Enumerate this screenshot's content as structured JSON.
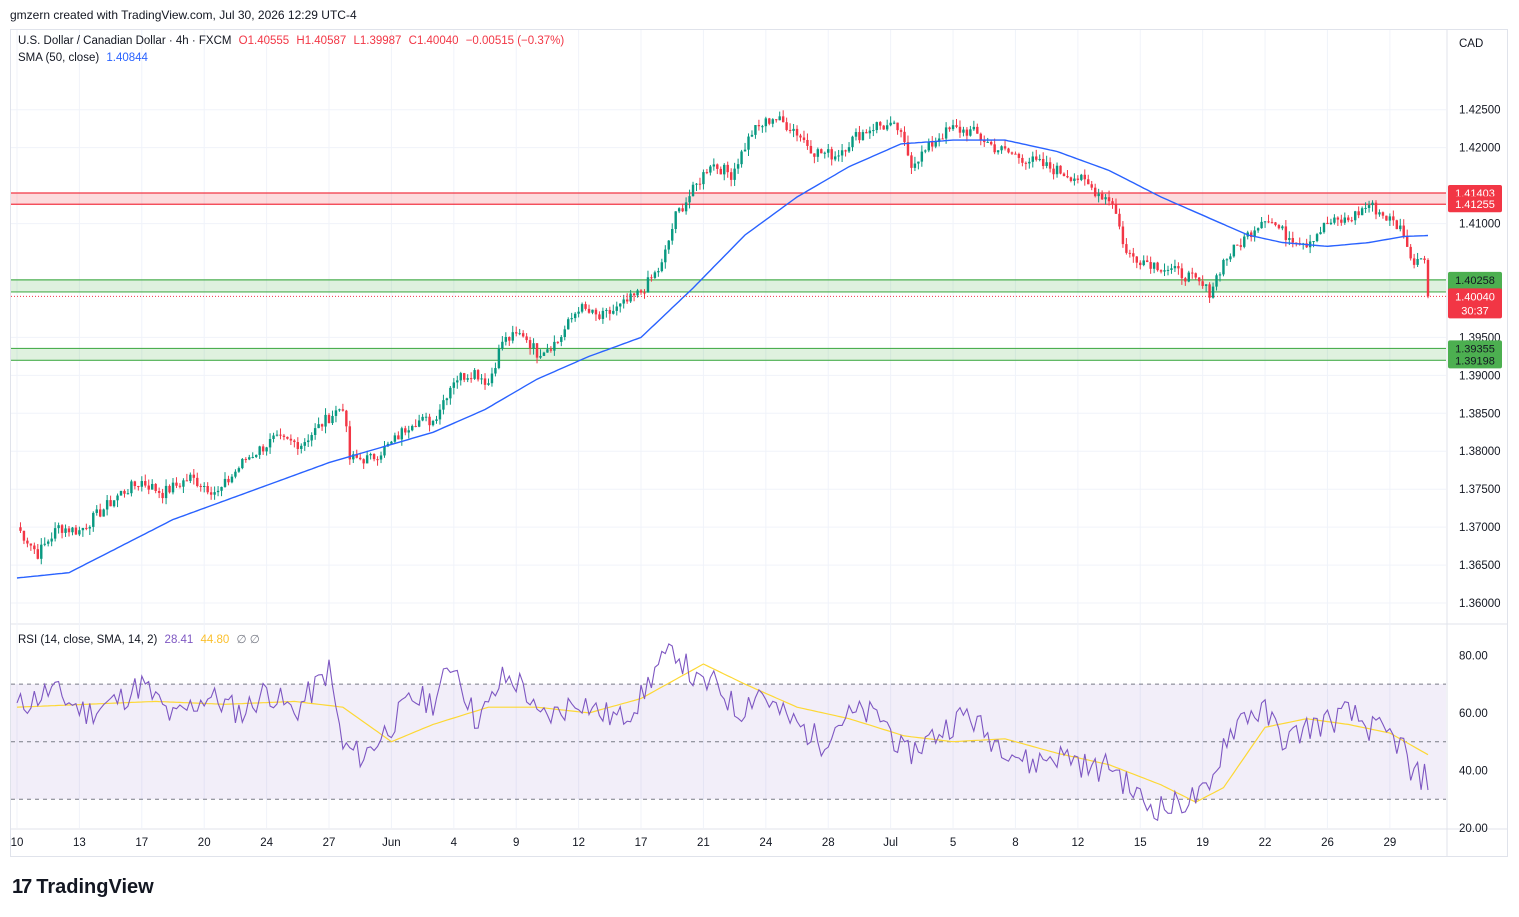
{
  "header": {
    "attribution": "gmzern created with TradingView.com, Jul 30, 2026 12:29 UTC-4"
  },
  "legend": {
    "symbol": "U.S. Dollar / Canadian Dollar · 4h · FXCM",
    "open": "O1.40555",
    "high": "H1.40587",
    "low": "L1.39987",
    "close": "C1.40040",
    "change": "−0.00515 (−0.37%)",
    "sma_label": "SMA (50, close)",
    "sma_value": "1.40844",
    "rsi_label": "RSI (14, close, SMA, 14, 2)",
    "rsi_value": "28.41",
    "rsi_ma_value": "44.80",
    "rsi_extra": "∅ ∅"
  },
  "currency": "CAD",
  "logo": {
    "mark": "17",
    "text": "TradingView"
  },
  "colors": {
    "up": "#089981",
    "down": "#f23645",
    "sma": "#2962ff",
    "rsi": "#7e57c2",
    "rsi_ma": "#fdd835",
    "resistance": "#f23645",
    "support": "#4caf50"
  },
  "chart_data": {
    "type": "candlestick",
    "price_axis": {
      "ticks": [
        "1.42500",
        "1.42000",
        "1.41000",
        "1.39500",
        "1.39000",
        "1.38500",
        "1.38000",
        "1.37500",
        "1.37000",
        "1.36500",
        "1.36000"
      ],
      "ylim": [
        1.3575,
        1.4305
      ]
    },
    "x_axis": {
      "ticks": [
        {
          "label": "10",
          "i": 0
        },
        {
          "label": "13",
          "i": 18
        },
        {
          "label": "17",
          "i": 36
        },
        {
          "label": "20",
          "i": 54
        },
        {
          "label": "24",
          "i": 72
        },
        {
          "label": "27",
          "i": 90
        },
        {
          "label": "Jun",
          "i": 108
        },
        {
          "label": "4",
          "i": 126
        },
        {
          "label": "9",
          "i": 144
        },
        {
          "label": "12",
          "i": 162
        },
        {
          "label": "17",
          "i": 180
        },
        {
          "label": "21",
          "i": 198
        },
        {
          "label": "24",
          "i": 216
        },
        {
          "label": "28",
          "i": 234
        },
        {
          "label": "Jul",
          "i": 252
        },
        {
          "label": "5",
          "i": 270
        },
        {
          "label": "8",
          "i": 288
        },
        {
          "label": "12",
          "i": 306
        },
        {
          "label": "15",
          "i": 324
        },
        {
          "label": "19",
          "i": 342
        },
        {
          "label": "22",
          "i": 360
        },
        {
          "label": "26",
          "i": 378
        },
        {
          "label": "29",
          "i": 396
        }
      ],
      "count": 408
    },
    "zones": [
      {
        "kind": "resistance",
        "from": 1.41255,
        "to": 1.41403,
        "labels": [
          "1.41403",
          "1.41255"
        ]
      },
      {
        "kind": "support",
        "from": 1.40099,
        "to": 1.40258,
        "labels": [
          "1.40258",
          "1.40099"
        ]
      },
      {
        "kind": "support",
        "from": 1.39198,
        "to": 1.39355,
        "labels": [
          "1.39355",
          "1.39198"
        ]
      }
    ],
    "last_price": {
      "value": 1.4004,
      "label": "1.40040",
      "countdown": "30:37"
    },
    "price_path": [
      [
        0,
        1.37
      ],
      [
        6,
        1.3665
      ],
      [
        12,
        1.37
      ],
      [
        18,
        1.3695
      ],
      [
        24,
        1.372
      ],
      [
        30,
        1.3745
      ],
      [
        36,
        1.376
      ],
      [
        42,
        1.3745
      ],
      [
        50,
        1.3765
      ],
      [
        58,
        1.3745
      ],
      [
        66,
        1.379
      ],
      [
        74,
        1.3815
      ],
      [
        82,
        1.381
      ],
      [
        90,
        1.3845
      ],
      [
        94,
        1.386
      ],
      [
        96,
        1.379
      ],
      [
        102,
        1.379
      ],
      [
        108,
        1.381
      ],
      [
        114,
        1.384
      ],
      [
        120,
        1.384
      ],
      [
        126,
        1.3895
      ],
      [
        132,
        1.3905
      ],
      [
        136,
        1.389
      ],
      [
        140,
        1.3945
      ],
      [
        146,
        1.3955
      ],
      [
        150,
        1.393
      ],
      [
        156,
        1.3945
      ],
      [
        162,
        1.399
      ],
      [
        168,
        1.3975
      ],
      [
        174,
        1.399
      ],
      [
        180,
        1.401
      ],
      [
        186,
        1.4045
      ],
      [
        190,
        1.411
      ],
      [
        196,
        1.415
      ],
      [
        200,
        1.418
      ],
      [
        206,
        1.4165
      ],
      [
        212,
        1.422
      ],
      [
        218,
        1.424
      ],
      [
        224,
        1.4225
      ],
      [
        230,
        1.4195
      ],
      [
        236,
        1.419
      ],
      [
        242,
        1.4215
      ],
      [
        248,
        1.423
      ],
      [
        254,
        1.4225
      ],
      [
        258,
        1.418
      ],
      [
        262,
        1.4195
      ],
      [
        266,
        1.4215
      ],
      [
        270,
        1.4225
      ],
      [
        276,
        1.422
      ],
      [
        282,
        1.42
      ],
      [
        288,
        1.419
      ],
      [
        294,
        1.418
      ],
      [
        300,
        1.417
      ],
      [
        306,
        1.416
      ],
      [
        312,
        1.414
      ],
      [
        316,
        1.413
      ],
      [
        320,
        1.406
      ],
      [
        326,
        1.405
      ],
      [
        332,
        1.404
      ],
      [
        338,
        1.403
      ],
      [
        344,
        1.401
      ],
      [
        348,
        1.405
      ],
      [
        354,
        1.408
      ],
      [
        360,
        1.411
      ],
      [
        366,
        1.4085
      ],
      [
        372,
        1.4075
      ],
      [
        378,
        1.41
      ],
      [
        384,
        1.4105
      ],
      [
        390,
        1.4125
      ],
      [
        396,
        1.4105
      ],
      [
        400,
        1.409
      ],
      [
        402,
        1.405
      ],
      [
        406,
        1.406
      ],
      [
        408,
        1.4004
      ]
    ],
    "sma_path": [
      [
        0,
        1.3633
      ],
      [
        15,
        1.364
      ],
      [
        30,
        1.3675
      ],
      [
        45,
        1.371
      ],
      [
        60,
        1.3735
      ],
      [
        75,
        1.376
      ],
      [
        90,
        1.3785
      ],
      [
        105,
        1.3805
      ],
      [
        120,
        1.3825
      ],
      [
        135,
        1.3855
      ],
      [
        150,
        1.3895
      ],
      [
        165,
        1.3925
      ],
      [
        180,
        1.395
      ],
      [
        195,
        1.4015
      ],
      [
        210,
        1.4085
      ],
      [
        225,
        1.4135
      ],
      [
        240,
        1.4175
      ],
      [
        255,
        1.4205
      ],
      [
        270,
        1.421
      ],
      [
        285,
        1.421
      ],
      [
        300,
        1.4195
      ],
      [
        315,
        1.417
      ],
      [
        330,
        1.4135
      ],
      [
        345,
        1.4105
      ],
      [
        355,
        1.4085
      ],
      [
        365,
        1.4075
      ],
      [
        378,
        1.407
      ],
      [
        390,
        1.4075
      ],
      [
        400,
        1.4083
      ],
      [
        408,
        1.40844
      ]
    ],
    "rsi": {
      "ticks": [
        "80.00",
        "60.00",
        "40.00",
        "20.00"
      ],
      "ylim": [
        20,
        85
      ],
      "overbought": 70,
      "oversold": 30,
      "path": [
        [
          0,
          62
        ],
        [
          10,
          68
        ],
        [
          20,
          60
        ],
        [
          30,
          65
        ],
        [
          36,
          70
        ],
        [
          45,
          58
        ],
        [
          55,
          66
        ],
        [
          65,
          60
        ],
        [
          72,
          68
        ],
        [
          80,
          60
        ],
        [
          90,
          75
        ],
        [
          94,
          48
        ],
        [
          100,
          45
        ],
        [
          108,
          56
        ],
        [
          114,
          65
        ],
        [
          120,
          64
        ],
        [
          126,
          78
        ],
        [
          132,
          58
        ],
        [
          136,
          62
        ],
        [
          140,
          72
        ],
        [
          146,
          70
        ],
        [
          150,
          58
        ],
        [
          156,
          60
        ],
        [
          162,
          65
        ],
        [
          168,
          60
        ],
        [
          174,
          58
        ],
        [
          180,
          65
        ],
        [
          184,
          75
        ],
        [
          190,
          82
        ],
        [
          196,
          70
        ],
        [
          202,
          70
        ],
        [
          208,
          60
        ],
        [
          214,
          68
        ],
        [
          220,
          60
        ],
        [
          226,
          55
        ],
        [
          232,
          50
        ],
        [
          238,
          58
        ],
        [
          244,
          60
        ],
        [
          250,
          58
        ],
        [
          256,
          45
        ],
        [
          262,
          50
        ],
        [
          268,
          55
        ],
        [
          274,
          60
        ],
        [
          280,
          52
        ],
        [
          286,
          48
        ],
        [
          292,
          42
        ],
        [
          298,
          45
        ],
        [
          304,
          45
        ],
        [
          310,
          40
        ],
        [
          316,
          42
        ],
        [
          320,
          35
        ],
        [
          326,
          28
        ],
        [
          332,
          27
        ],
        [
          338,
          30
        ],
        [
          344,
          32
        ],
        [
          348,
          50
        ],
        [
          354,
          60
        ],
        [
          360,
          60
        ],
        [
          366,
          50
        ],
        [
          372,
          55
        ],
        [
          378,
          57
        ],
        [
          384,
          60
        ],
        [
          390,
          55
        ],
        [
          396,
          52
        ],
        [
          400,
          48
        ],
        [
          402,
          38
        ],
        [
          406,
          38
        ],
        [
          408,
          28.41
        ]
      ],
      "ma_path": [
        [
          0,
          62
        ],
        [
          20,
          63
        ],
        [
          40,
          64
        ],
        [
          60,
          63
        ],
        [
          80,
          64
        ],
        [
          94,
          62
        ],
        [
          108,
          50
        ],
        [
          120,
          56
        ],
        [
          136,
          62
        ],
        [
          150,
          62
        ],
        [
          165,
          60
        ],
        [
          180,
          65
        ],
        [
          198,
          77
        ],
        [
          210,
          70
        ],
        [
          225,
          62
        ],
        [
          240,
          58
        ],
        [
          256,
          52
        ],
        [
          270,
          50
        ],
        [
          285,
          51
        ],
        [
          300,
          46
        ],
        [
          315,
          42
        ],
        [
          330,
          35
        ],
        [
          340,
          29
        ],
        [
          348,
          34
        ],
        [
          360,
          55
        ],
        [
          372,
          58
        ],
        [
          384,
          56
        ],
        [
          396,
          53
        ],
        [
          408,
          44.8
        ]
      ]
    }
  }
}
